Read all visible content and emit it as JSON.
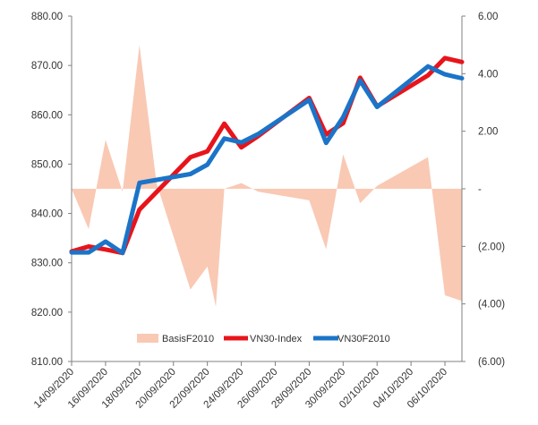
{
  "chart_data": {
    "type": "line",
    "title": "",
    "xlabel": "",
    "ylabel": "",
    "categories": [
      "14/09/2020",
      "15/09/2020",
      "16/09/2020",
      "17/09/2020",
      "18/09/2020",
      "21/09/2020",
      "22/09/2020",
      "23/09/2020",
      "24/09/2020",
      "25/09/2020",
      "28/09/2020",
      "29/09/2020",
      "30/09/2020",
      "01/10/2020",
      "02/10/2020",
      "05/10/2020",
      "06/10/2020",
      "07/10/2020"
    ],
    "x_tick_labels": [
      "14/09/2020",
      "16/09/2020",
      "18/09/2020",
      "20/09/2020",
      "22/09/2020",
      "24/09/2020",
      "26/09/2020",
      "28/09/2020",
      "30/09/2020",
      "02/10/2020",
      "04/10/2020",
      "06/10/2020"
    ],
    "x_dates": [
      "2020-09-14",
      "2020-09-15",
      "2020-09-16",
      "2020-09-17",
      "2020-09-18",
      "2020-09-21",
      "2020-09-22",
      "2020-09-23",
      "2020-09-24",
      "2020-09-25",
      "2020-09-28",
      "2020-09-29",
      "2020-09-30",
      "2020-10-01",
      "2020-10-02",
      "2020-10-05",
      "2020-10-06",
      "2020-10-07"
    ],
    "x_tick_dates": [
      "2020-09-14",
      "2020-09-16",
      "2020-09-18",
      "2020-09-20",
      "2020-09-22",
      "2020-09-24",
      "2020-09-26",
      "2020-09-28",
      "2020-09-30",
      "2020-10-02",
      "2020-10-04",
      "2020-10-06"
    ],
    "x_axis_start": "2020-09-14",
    "x_axis_end": "2020-10-07",
    "y_left": {
      "ylim": [
        810,
        880
      ],
      "ticks": [
        810,
        820,
        830,
        840,
        850,
        860,
        870,
        880
      ],
      "tick_labels": [
        "810.00",
        "820.00",
        "830.00",
        "840.00",
        "850.00",
        "860.00",
        "870.00",
        "880.00"
      ]
    },
    "y_right": {
      "ylim": [
        -6,
        6
      ],
      "ticks": [
        -6,
        -4,
        -2,
        0,
        2,
        4,
        6
      ],
      "tick_labels": [
        "(6.00)",
        "(4.00)",
        "(2.00)",
        "-",
        "2.00",
        "4.00",
        "6.00"
      ]
    },
    "series": [
      {
        "name": "BasisF2010",
        "type": "area",
        "axis": "right",
        "color": "#f9c9b4",
        "x": [
          "2020-09-14",
          "2020-09-15",
          "2020-09-16",
          "2020-09-17",
          "2020-09-18",
          "2020-09-19",
          "2020-09-21",
          "2020-09-22",
          "2020-09-22T12:00",
          "2020-09-23",
          "2020-09-24",
          "2020-09-25",
          "2020-09-28",
          "2020-09-29",
          "2020-09-30",
          "2020-10-01",
          "2020-10-02",
          "2020-10-05",
          "2020-10-06",
          "2020-10-07"
        ],
        "values": [
          0,
          -1.4,
          1.7,
          -0.1,
          5.0,
          0.2,
          -3.5,
          -2.7,
          -4.1,
          0,
          0.2,
          -0.1,
          -0.4,
          -2.1,
          1.2,
          -0.5,
          0.1,
          1.1,
          -3.7,
          -3.9
        ]
      },
      {
        "name": "VN30-Index",
        "type": "line",
        "axis": "left",
        "color": "#e8141b",
        "x": [
          "2020-09-14",
          "2020-09-15",
          "2020-09-16",
          "2020-09-17",
          "2020-09-18",
          "2020-09-21",
          "2020-09-22",
          "2020-09-23",
          "2020-09-24",
          "2020-09-25",
          "2020-09-28",
          "2020-09-29",
          "2020-09-30",
          "2020-10-01",
          "2020-10-02",
          "2020-10-05",
          "2020-10-06",
          "2020-10-07"
        ],
        "values": [
          832.3,
          833.3,
          832.7,
          832.0,
          840.8,
          851.4,
          852.6,
          858.2,
          853.4,
          855.7,
          863.4,
          856.0,
          858.3,
          867.5,
          861.7,
          868.0,
          871.5,
          870.7
        ]
      },
      {
        "name": "VN30F2010",
        "type": "line",
        "axis": "left",
        "color": "#1b74c8",
        "x": [
          "2020-09-14",
          "2020-09-15",
          "2020-09-16",
          "2020-09-17",
          "2020-09-18",
          "2020-09-21",
          "2020-09-22",
          "2020-09-23",
          "2020-09-24",
          "2020-09-25",
          "2020-09-28",
          "2020-09-29",
          "2020-09-30",
          "2020-10-01",
          "2020-10-02",
          "2020-10-05",
          "2020-10-06",
          "2020-10-07"
        ],
        "values": [
          832.1,
          832.1,
          834.3,
          832.0,
          846.2,
          848.0,
          849.9,
          855.2,
          854.4,
          856.1,
          863.0,
          854.3,
          859.5,
          866.9,
          861.6,
          869.8,
          868.2,
          867.4
        ]
      }
    ],
    "legend": {
      "position": "bottom-inside",
      "entries": [
        "BasisF2010",
        "VN30-Index",
        "VN30F2010"
      ]
    }
  }
}
